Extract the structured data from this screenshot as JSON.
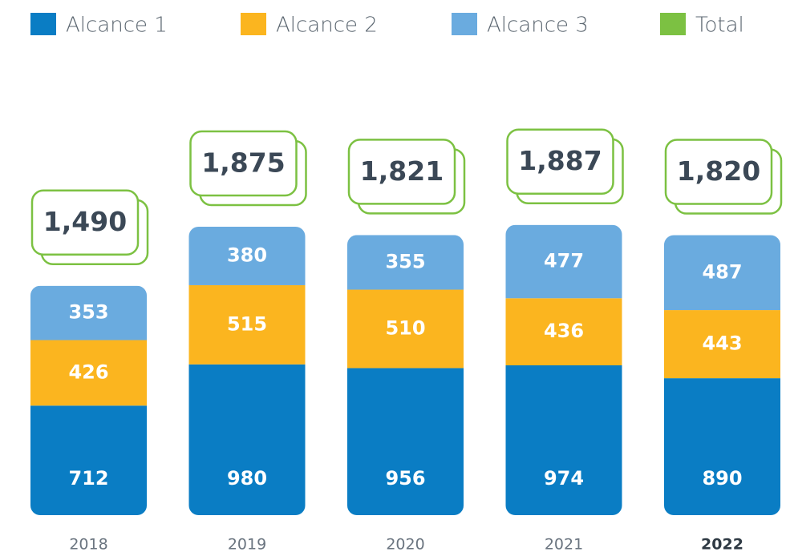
{
  "chart_data": {
    "type": "stacked-bar",
    "categories": [
      "2018",
      "2019",
      "2020",
      "2021",
      "2022"
    ],
    "series": [
      {
        "name": "Alcance 1",
        "color": "#0a7dc4",
        "values": [
          712,
          980,
          956,
          974,
          890
        ]
      },
      {
        "name": "Alcance 2",
        "color": "#fbb51f",
        "values": [
          426,
          515,
          510,
          436,
          443
        ]
      },
      {
        "name": "Alcance 3",
        "color": "#6aabdf",
        "values": [
          353,
          380,
          355,
          477,
          487
        ]
      },
      {
        "name": "Total",
        "color": "#7cc142",
        "values": [
          1490,
          1875,
          1821,
          1887,
          1820
        ],
        "value_labels": [
          "1,490",
          "1,875",
          "1,821",
          "1,887",
          "1,820"
        ]
      }
    ]
  }
}
